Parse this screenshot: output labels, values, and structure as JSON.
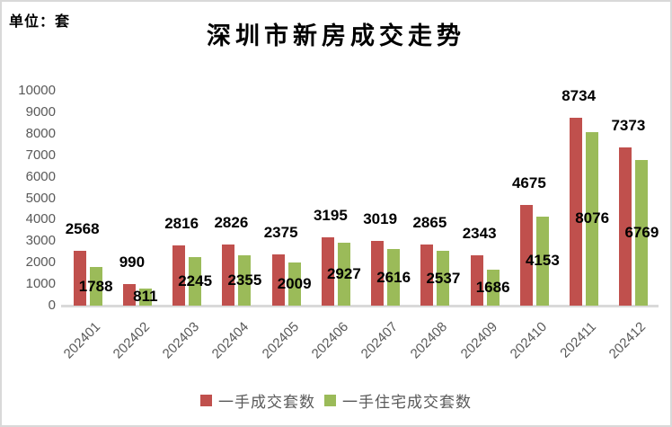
{
  "header": {
    "unit_label": "单位：套",
    "title": "深圳市新房成交走势"
  },
  "chart_data": {
    "type": "bar",
    "title": "深圳市新房成交走势",
    "unit": "单位：套",
    "categories": [
      "202401",
      "202402",
      "202403",
      "202404",
      "202405",
      "202406",
      "202407",
      "202408",
      "202409",
      "202410",
      "202411",
      "202412"
    ],
    "series": [
      {
        "name": "一手成交套数",
        "color": "#c0504d",
        "values": [
          2568,
          990,
          2816,
          2826,
          2375,
          3195,
          3019,
          2865,
          2343,
          4675,
          8734,
          7373
        ]
      },
      {
        "name": "一手住宅成交套数",
        "color": "#9bbb59",
        "values": [
          1788,
          811,
          2245,
          2355,
          2009,
          2927,
          2616,
          2537,
          1686,
          4153,
          8076,
          6769
        ]
      }
    ],
    "ylim": [
      0,
      10000
    ],
    "ytick_step": 1000,
    "grid": false,
    "data_labels": true,
    "legend_position": "bottom"
  },
  "legend": {
    "items": [
      {
        "label": "一手成交套数",
        "color": "#c0504d"
      },
      {
        "label": "一手住宅成交套数",
        "color": "#9bbb59"
      }
    ]
  },
  "colors": {
    "axis_text": "#595959",
    "frame_border": "#d9d9d9",
    "data_label": "#000000"
  }
}
